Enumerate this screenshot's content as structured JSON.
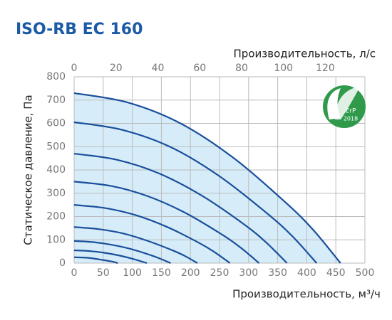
{
  "chart_data": {
    "type": "line",
    "title": "ISO-RB EC 160",
    "x_label": "Производительность, м³/ч",
    "x2_label": "Производительность, л/с",
    "y_label": "Статическое давление, Па",
    "xlim": [
      0,
      500
    ],
    "xticks": [
      0,
      50,
      100,
      150,
      200,
      250,
      300,
      350,
      400,
      450,
      500
    ],
    "x2lim": [
      0,
      138.9
    ],
    "x2ticks": [
      0,
      20,
      40,
      60,
      80,
      100,
      120
    ],
    "ylim": [
      0,
      800
    ],
    "yticks": [
      0,
      100,
      200,
      300,
      400,
      500,
      600,
      700,
      800
    ],
    "grid": true,
    "color": "#1a4f9c",
    "fill_color": "#d6edf9",
    "series": [
      {
        "x": [
          0,
          92,
          183,
          275,
          366,
          412,
          458
        ],
        "values": [
          730,
          690,
          600,
          450,
          255,
          140,
          0
        ]
      },
      {
        "x": [
          0,
          83,
          167,
          250,
          333,
          375,
          417
        ],
        "values": [
          605,
          572,
          497,
          373,
          211,
          116,
          0
        ]
      },
      {
        "x": [
          0,
          73,
          146,
          220,
          293,
          330,
          366
        ],
        "values": [
          470,
          444,
          385,
          289,
          165,
          89,
          0
        ]
      },
      {
        "x": [
          0,
          64,
          127,
          191,
          254,
          286,
          318
        ],
        "values": [
          350,
          331,
          287,
          216,
          123,
          67,
          0
        ]
      },
      {
        "x": [
          0,
          54,
          107,
          161,
          214,
          241,
          268
        ],
        "values": [
          250,
          236,
          205,
          154,
          88,
          48,
          0
        ]
      },
      {
        "x": [
          0,
          42,
          85,
          127,
          170,
          191,
          212
        ],
        "values": [
          155,
          146,
          127,
          95,
          54,
          30,
          0
        ]
      },
      {
        "x": [
          0,
          33,
          66,
          100,
          133,
          149,
          166
        ],
        "values": [
          95,
          90,
          78,
          59,
          33,
          18,
          0
        ]
      },
      {
        "x": [
          0,
          25,
          50,
          75,
          100,
          112,
          125
        ],
        "values": [
          55,
          52,
          45,
          34,
          19,
          10,
          0
        ]
      },
      {
        "x": [
          0,
          15,
          30,
          45,
          60,
          68,
          75
        ],
        "values": [
          25,
          24,
          21,
          15,
          9,
          5,
          0
        ]
      }
    ],
    "logo": {
      "label": "ErP",
      "year": "2018"
    }
  }
}
